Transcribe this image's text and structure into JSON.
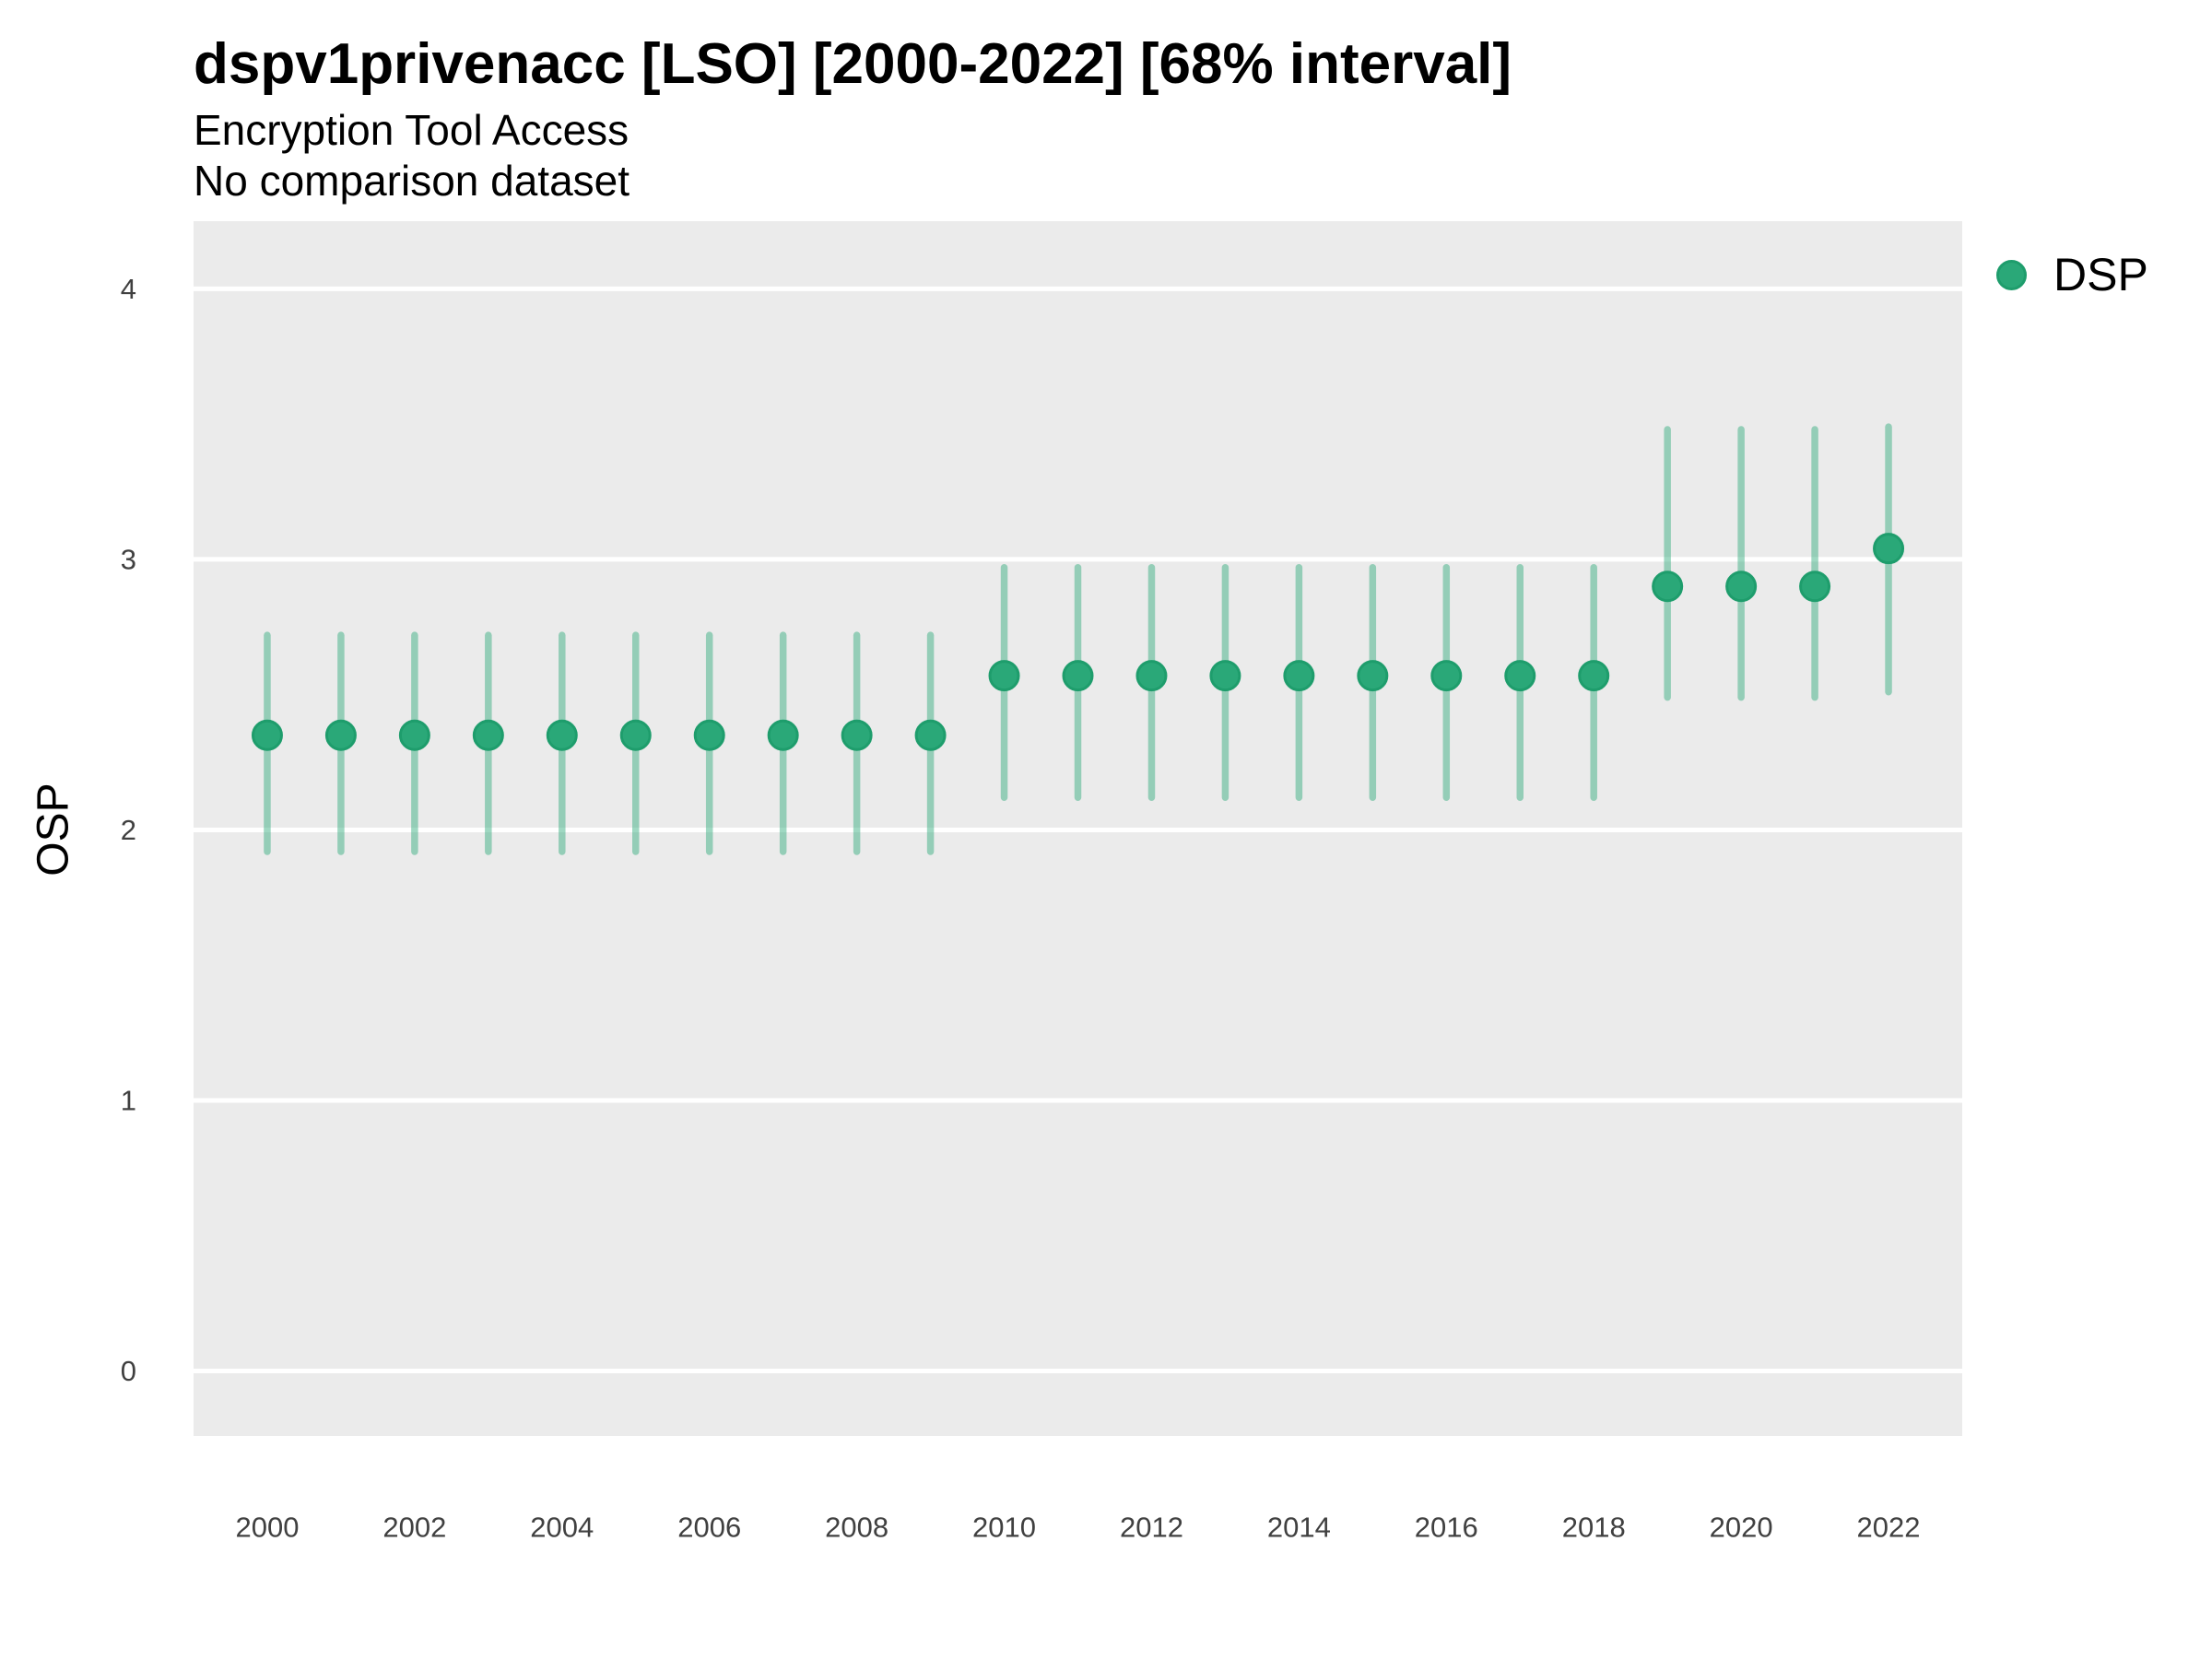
{
  "header": {
    "title": "dspv1privenacc [LSO] [2000-2022] [68% interval]",
    "subtitle": "Encryption Tool Access",
    "note": "No comparison dataset"
  },
  "colors": {
    "point_fill": "#2AA878",
    "point_stroke": "#1E9D6C",
    "interval_line": "rgba(42, 168, 120, 0.45)",
    "panel_background": "#EBEBEB",
    "gridline": "#FFFFFF",
    "tick_label": "#404040",
    "text": "#000000"
  },
  "chart_data": {
    "type": "pointrange",
    "title": "dspv1privenacc [LSO] [2000-2022] [68% interval]",
    "subtitle": "Encryption Tool Access",
    "note": "No comparison dataset",
    "interval_label": "68% interval",
    "xlabel": "",
    "ylabel": "OSP",
    "x": [
      2000,
      2001,
      2002,
      2003,
      2004,
      2005,
      2006,
      2007,
      2008,
      2009,
      2010,
      2011,
      2012,
      2013,
      2014,
      2015,
      2016,
      2017,
      2018,
      2019,
      2020,
      2021,
      2022
    ],
    "series": [
      {
        "name": "DSP",
        "estimate": [
          2.35,
          2.35,
          2.35,
          2.35,
          2.35,
          2.35,
          2.35,
          2.35,
          2.35,
          2.35,
          2.57,
          2.57,
          2.57,
          2.57,
          2.57,
          2.57,
          2.57,
          2.57,
          2.57,
          2.9,
          2.9,
          2.9,
          3.04
        ],
        "lower": [
          1.92,
          1.92,
          1.92,
          1.92,
          1.92,
          1.92,
          1.92,
          1.92,
          1.92,
          1.92,
          2.12,
          2.12,
          2.12,
          2.12,
          2.12,
          2.12,
          2.12,
          2.12,
          2.12,
          2.49,
          2.49,
          2.49,
          2.51
        ],
        "upper": [
          2.72,
          2.72,
          2.72,
          2.72,
          2.72,
          2.72,
          2.72,
          2.72,
          2.72,
          2.72,
          2.97,
          2.97,
          2.97,
          2.97,
          2.97,
          2.97,
          2.97,
          2.97,
          2.97,
          3.48,
          3.48,
          3.48,
          3.49
        ]
      }
    ],
    "yticks": [
      0,
      1,
      2,
      3,
      4
    ],
    "xticks": [
      2000,
      2002,
      2004,
      2006,
      2008,
      2010,
      2012,
      2014,
      2016,
      2018,
      2020,
      2022
    ],
    "ylim": [
      -0.24,
      4.25
    ],
    "xlim": [
      1999,
      2023
    ],
    "grid": "major-horizontal",
    "legend_position": "right"
  }
}
